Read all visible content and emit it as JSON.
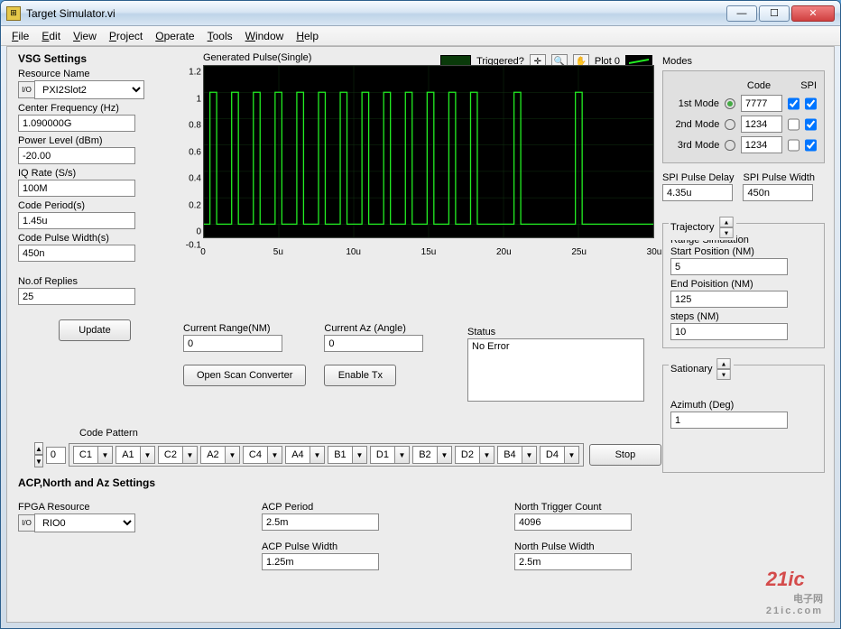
{
  "window": {
    "title": "Target Simulator.vi"
  },
  "menu": [
    "File",
    "Edit",
    "View",
    "Project",
    "Operate",
    "Tools",
    "Window",
    "Help"
  ],
  "vsg": {
    "section": "VSG Settings",
    "resource_name_label": "Resource Name",
    "resource_name_value": "PXI2Slot2",
    "center_freq_label": "Center Frequency (Hz)",
    "center_freq_value": "1.090000G",
    "power_level_label": "Power Level (dBm)",
    "power_level_value": "-20.00",
    "iq_rate_label": "IQ Rate (S/s)",
    "iq_rate_value": "100M",
    "code_period_label": "Code Period(s)",
    "code_period_value": "1.45u",
    "code_pulse_width_label": "Code Pulse Width(s)",
    "code_pulse_width_value": "450n",
    "replies_label": "No.of Replies",
    "replies_value": "25",
    "update_btn": "Update"
  },
  "chart": {
    "title": "Generated Pulse(Single)",
    "triggered_label": "Triggered?",
    "plot_label": "Plot 0",
    "bg": "#000000",
    "line_color": "#22ee22",
    "grid_color": "#113311",
    "ylim": [
      -0.1,
      1.2
    ],
    "yticks": [
      "-0.1",
      "0",
      "0.2",
      "0.4",
      "0.6",
      "0.8",
      "1",
      "1.2"
    ],
    "xlim_us": [
      0,
      30
    ],
    "xticks": [
      "0",
      "5u",
      "10u",
      "15u",
      "20u",
      "25u",
      "30u"
    ],
    "pulse_edges_us": [
      0.4,
      0.85,
      1.85,
      2.3,
      3.3,
      3.75,
      4.75,
      5.2,
      6.2,
      6.65,
      7.65,
      8.1,
      9.1,
      9.55,
      10.55,
      11.0,
      12.0,
      12.45,
      13.45,
      13.9,
      14.9,
      15.35,
      16.35,
      16.8,
      17.8,
      18.25,
      20.7,
      21.15,
      24.8,
      25.25
    ],
    "low": 0.0,
    "high": 1.0
  },
  "row2": {
    "current_range_label": "Current Range(NM)",
    "current_range_value": "0",
    "current_az_label": "Current Az (Angle)",
    "current_az_value": "0",
    "open_scan_btn": "Open Scan Converter",
    "enable_tx_btn": "Enable Tx"
  },
  "status": {
    "label": "Status",
    "text": "No Error"
  },
  "code_pattern": {
    "label": "Code Pattern",
    "index": "0",
    "cells": [
      "C1",
      "A1",
      "C2",
      "A2",
      "C4",
      "A4",
      "B1",
      "D1",
      "B2",
      "D2",
      "B4",
      "D4"
    ],
    "stop_btn": "Stop"
  },
  "acp": {
    "section": "ACP,North and Az Settings",
    "fpga_label": "FPGA Resource",
    "fpga_value": "RIO0",
    "acp_period_label": "ACP Period",
    "acp_period_value": "2.5m",
    "acp_pw_label": "ACP Pulse Width",
    "acp_pw_value": "1.25m",
    "north_trig_label": "North Trigger Count",
    "north_trig_value": "4096",
    "north_pw_label": "North Pulse Width",
    "north_pw_value": "2.5m"
  },
  "modes": {
    "label": "Modes",
    "code_hdr": "Code",
    "spi_hdr": "SPI",
    "rows": [
      {
        "label": "1st Mode",
        "code": "7777",
        "en": true,
        "spi": true
      },
      {
        "label": "2nd Mode",
        "code": "1234",
        "en": false,
        "spi": true
      },
      {
        "label": "3rd Mode",
        "code": "1234",
        "en": false,
        "spi": true
      }
    ],
    "spi_delay_label": "SPI Pulse Delay",
    "spi_delay_value": "4.35u",
    "spi_width_label": "SPI Pulse Width",
    "spi_width_value": "450n"
  },
  "trajectory": {
    "legend": "Trajectory",
    "range_sim_label": "Range Simulation",
    "start_label": "Start Position (NM)",
    "start_value": "5",
    "end_label": "End Poisition (NM)",
    "end_value": "125",
    "steps_label": "steps (NM)",
    "steps_value": "10"
  },
  "stationary": {
    "legend": "Sationary",
    "azimuth_label": "Azimuth (Deg)",
    "azimuth_value": "1"
  },
  "watermark": {
    "big": "21ic",
    "sub": "电子网",
    "url": "21ic.com"
  }
}
